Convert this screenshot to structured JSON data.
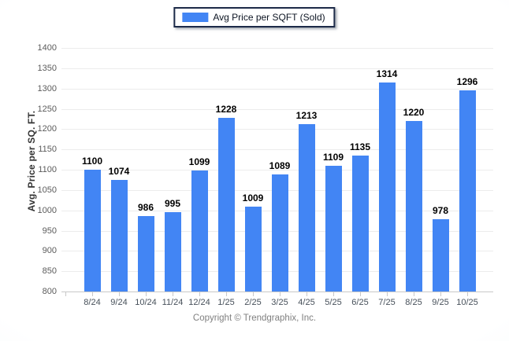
{
  "legend": {
    "label": "Avg Price per SQFT (Sold)",
    "swatch_color": "#4285f4"
  },
  "footer": {
    "copyright": "Copyright © Trendgraphix, Inc."
  },
  "chart_data": {
    "type": "bar",
    "title": "",
    "categories": [
      "8/24",
      "9/24",
      "10/24",
      "11/24",
      "12/24",
      "1/25",
      "2/25",
      "3/25",
      "4/25",
      "5/25",
      "6/25",
      "7/25",
      "8/25",
      "9/25",
      "10/25"
    ],
    "series": [
      {
        "name": "Avg Price per SQFT (Sold)",
        "values": [
          1100,
          1074,
          986,
          995,
          1099,
          1228,
          1009,
          1089,
          1213,
          1109,
          1135,
          1314,
          1220,
          978,
          1296
        ]
      }
    ],
    "xlabel": "",
    "ylabel": "Avg. Price per SQ. FT.",
    "ylim": [
      800,
      1400
    ],
    "ytick_step": 50,
    "grid": true,
    "value_labels": true,
    "legend_position": "top-center",
    "colors": {
      "bar": "#4285f4",
      "gridline": "#ececec",
      "axis_line": "#c8c8c8",
      "y_tick_label": "#5b5b5b",
      "x_tick_label": "#47505a",
      "value_label": "#000000",
      "legend_border": "#1c2a48",
      "footer_text": "#808080"
    }
  }
}
